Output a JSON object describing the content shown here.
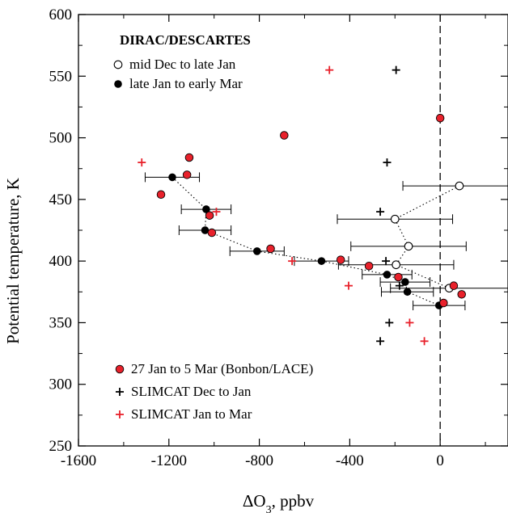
{
  "chart_data": {
    "type": "scatter",
    "title": "",
    "xlabel": "ΔO",
    "xlabel_sub": "3",
    "xlabel_suffix": ", ppbv",
    "ylabel": "Potential temperature, K",
    "xlim": [
      -1600,
      300
    ],
    "ylim": [
      250,
      600
    ],
    "xticks": [
      -1600,
      -1200,
      -800,
      -400,
      0
    ],
    "yticks": [
      250,
      300,
      350,
      400,
      450,
      500,
      550,
      600
    ],
    "grid": false,
    "reference_line": {
      "x": 0,
      "style": "dashed"
    },
    "legend_top_title": "DIRAC/DESCARTES",
    "legend_top_position": "top-left",
    "legend_bottom_position": "bottom-left",
    "colors": {
      "red": "#e8212b",
      "black": "#000000",
      "white": "#ffffff"
    },
    "series": [
      {
        "name": "mid Dec to late Jan",
        "marker": "open-circle",
        "connected": true,
        "legend_group": "top",
        "points": [
          {
            "x": 85,
            "y": 461,
            "xerr": 250
          },
          {
            "x": -200,
            "y": 434,
            "xerr": 255
          },
          {
            "x": -140,
            "y": 412,
            "xerr": 255
          },
          {
            "x": -195,
            "y": 397,
            "xerr": 255
          },
          {
            "x": 40,
            "y": 378,
            "xerr": 260
          }
        ]
      },
      {
        "name": "late Jan to early Mar",
        "marker": "filled-circle",
        "connected": true,
        "legend_group": "top",
        "points": [
          {
            "x": -1185,
            "y": 468,
            "xerr": 120
          },
          {
            "x": -1035,
            "y": 442,
            "xerr": 110
          },
          {
            "x": -1040,
            "y": 425,
            "xerr": 115
          },
          {
            "x": -810,
            "y": 408,
            "xerr": 120
          },
          {
            "x": -525,
            "y": 400,
            "xerr": 120
          },
          {
            "x": -235,
            "y": 389,
            "xerr": 110
          },
          {
            "x": -155,
            "y": 383,
            "xerr": 110
          },
          {
            "x": -145,
            "y": 375,
            "xerr": 115
          },
          {
            "x": -5,
            "y": 364,
            "xerr": 115
          }
        ]
      },
      {
        "name": "27 Jan to 5 Mar (Bonbon/LACE)",
        "marker": "red-circle",
        "legend_group": "bottom",
        "points": [
          {
            "x": -1110,
            "y": 484
          },
          {
            "x": -1120,
            "y": 470
          },
          {
            "x": -1235,
            "y": 454
          },
          {
            "x": -1020,
            "y": 437
          },
          {
            "x": -1010,
            "y": 423
          },
          {
            "x": -750,
            "y": 410
          },
          {
            "x": -690,
            "y": 502
          },
          {
            "x": -440,
            "y": 401
          },
          {
            "x": -315,
            "y": 396
          },
          {
            "x": -185,
            "y": 387
          },
          {
            "x": 60,
            "y": 380
          },
          {
            "x": 95,
            "y": 373
          },
          {
            "x": 15,
            "y": 366
          },
          {
            "x": 0,
            "y": 516
          }
        ]
      },
      {
        "name": "SLIMCAT Dec to Jan",
        "marker": "black-plus",
        "legend_group": "bottom",
        "points": [
          {
            "x": -195,
            "y": 555
          },
          {
            "x": -235,
            "y": 480
          },
          {
            "x": -265,
            "y": 440
          },
          {
            "x": -240,
            "y": 400
          },
          {
            "x": -180,
            "y": 380
          },
          {
            "x": -225,
            "y": 350
          },
          {
            "x": -265,
            "y": 335
          }
        ]
      },
      {
        "name": "SLIMCAT Jan to Mar",
        "marker": "red-plus",
        "legend_group": "bottom",
        "points": [
          {
            "x": -1320,
            "y": 480
          },
          {
            "x": -490,
            "y": 555
          },
          {
            "x": -990,
            "y": 440
          },
          {
            "x": -655,
            "y": 400
          },
          {
            "x": -405,
            "y": 380
          },
          {
            "x": -135,
            "y": 350
          },
          {
            "x": -70,
            "y": 335
          }
        ]
      }
    ]
  }
}
